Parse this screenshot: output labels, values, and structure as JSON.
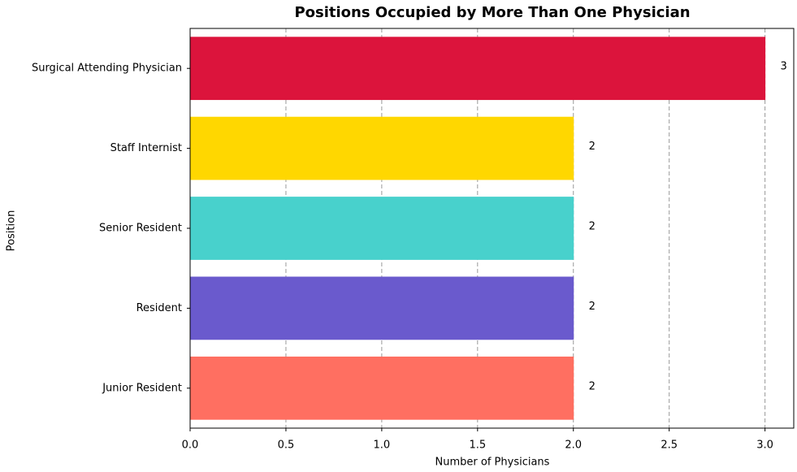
{
  "chart_data": {
    "type": "barh",
    "title": "Positions Occupied by More Than One Physician",
    "x_label": "Number of Physicians",
    "y_label": "Position",
    "categories": [
      "Surgical Attending Physician",
      "Staff Internist",
      "Senior Resident",
      "Resident",
      "Junior Resident"
    ],
    "values": [
      3,
      2,
      2,
      2,
      2
    ],
    "colors": [
      "#dc143c",
      "#ffd700",
      "#48d1cc",
      "#6a5acd",
      "#ff6f61"
    ],
    "xlim": [
      0,
      3.15
    ],
    "xticks": [
      {
        "value": 0,
        "label": "0.0"
      },
      0.5,
      {
        "value": 1,
        "label": "1.0"
      },
      1.5,
      {
        "value": 2,
        "label": "2.0"
      },
      2.5,
      {
        "value": 3,
        "label": "3.0"
      }
    ],
    "grid": true
  }
}
